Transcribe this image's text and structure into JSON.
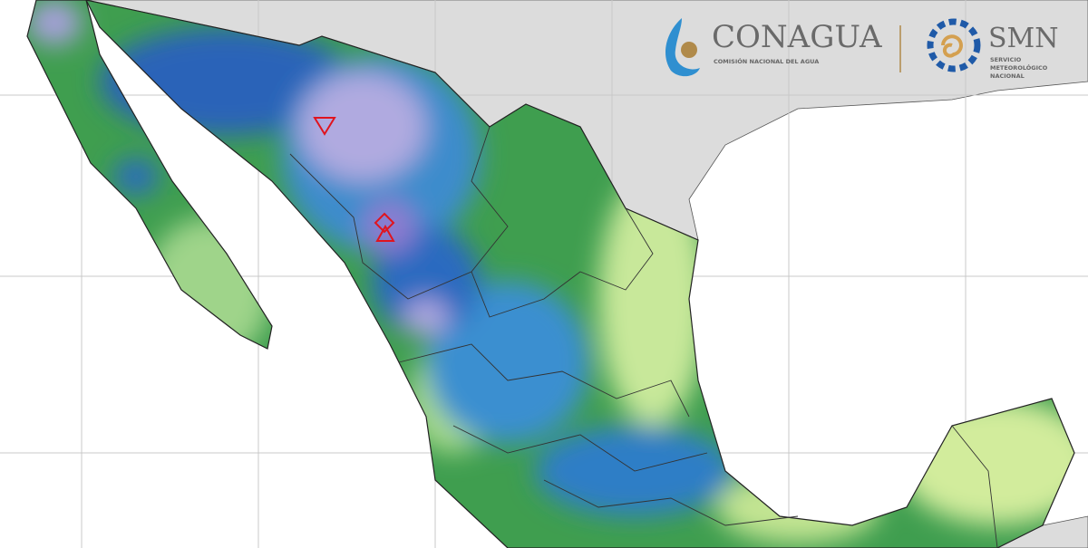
{
  "logos": {
    "conagua": {
      "name": "CONAGUA",
      "subtitle": "COMISIÓN NACIONAL DEL AGUA"
    },
    "smn": {
      "name": "SMN",
      "subtitle": [
        "SERVICIO",
        "METEOROLÓGICO",
        "NACIONAL"
      ]
    }
  }
}
